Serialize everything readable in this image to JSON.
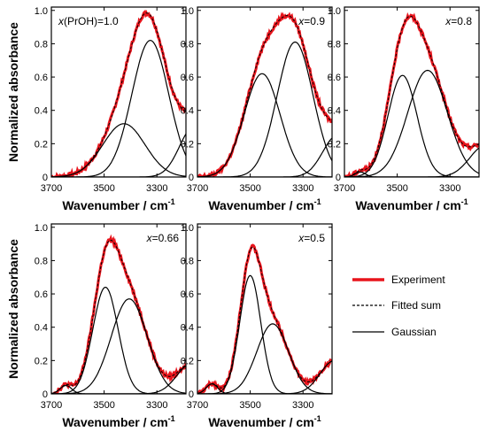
{
  "figure": {
    "legend": [
      {
        "label": "Experiment",
        "color": "#e8141c",
        "style": "thick"
      },
      {
        "label": "Fitted sum",
        "color": "#000000",
        "style": "dashed"
      },
      {
        "label": "Gaussian",
        "color": "#000000",
        "style": "solid"
      }
    ]
  },
  "chart_data": [
    {
      "type": "line",
      "annotation_prefix": "x",
      "annotation_sub": "(PrOH)",
      "annotation_value": "=1.0",
      "xlabel_main": "Wavenumber / cm",
      "xlabel_sup": "-1",
      "ylabel": "Normalized absorbance",
      "xlim": [
        3700,
        3190
      ],
      "ylim": [
        0,
        1.02
      ],
      "xticks": [
        3700,
        3500,
        3300
      ],
      "yticks": [
        0,
        0.2,
        0.4,
        0.6,
        0.8,
        1.0
      ],
      "gaussians": [
        {
          "center": 3325,
          "amp": 0.82,
          "sigma": 70
        },
        {
          "center": 3425,
          "amp": 0.32,
          "sigma": 80
        },
        {
          "center": 3160,
          "amp": 0.3,
          "sigma": 55
        }
      ]
    },
    {
      "type": "line",
      "annotation_prefix": "x",
      "annotation_sub": "",
      "annotation_value": "=0.9",
      "xlabel_main": "Wavenumber / cm",
      "xlabel_sup": "-1",
      "ylabel": "",
      "xlim": [
        3700,
        3190
      ],
      "ylim": [
        0,
        1.02
      ],
      "xticks": [
        3700,
        3500,
        3300
      ],
      "yticks": [
        0,
        0.2,
        0.4,
        0.6,
        0.8,
        1.0
      ],
      "gaussians": [
        {
          "center": 3330,
          "amp": 0.81,
          "sigma": 68
        },
        {
          "center": 3455,
          "amp": 0.62,
          "sigma": 68
        },
        {
          "center": 3170,
          "amp": 0.25,
          "sigma": 55
        }
      ]
    },
    {
      "type": "line",
      "annotation_prefix": "x",
      "annotation_sub": "",
      "annotation_value": "=0.8",
      "xlabel_main": "Wavenumber / cm",
      "xlabel_sup": "-1",
      "ylabel": "",
      "xlim": [
        3700,
        3190
      ],
      "ylim": [
        0,
        1.02
      ],
      "xticks": [
        3700,
        3500,
        3300
      ],
      "yticks": [
        0,
        0.2,
        0.4,
        0.6,
        0.8,
        1.0
      ],
      "gaussians": [
        {
          "center": 3480,
          "amp": 0.61,
          "sigma": 55
        },
        {
          "center": 3385,
          "amp": 0.64,
          "sigma": 75
        },
        {
          "center": 3165,
          "amp": 0.19,
          "sigma": 60
        },
        {
          "center": 3640,
          "amp": 0.03,
          "sigma": 20
        }
      ]
    },
    {
      "type": "line",
      "annotation_prefix": "x",
      "annotation_sub": "",
      "annotation_value": "=0.66",
      "xlabel_main": "Wavenumber / cm",
      "xlabel_sup": "-1",
      "ylabel": "Normalized absorbance",
      "xlim": [
        3700,
        3190
      ],
      "ylim": [
        0,
        1.02
      ],
      "xticks": [
        3700,
        3500,
        3300
      ],
      "yticks": [
        0,
        0.2,
        0.4,
        0.6,
        0.8,
        1.0
      ],
      "gaussians": [
        {
          "center": 3495,
          "amp": 0.64,
          "sigma": 48
        },
        {
          "center": 3405,
          "amp": 0.57,
          "sigma": 68
        },
        {
          "center": 3170,
          "amp": 0.18,
          "sigma": 55
        },
        {
          "center": 3645,
          "amp": 0.05,
          "sigma": 22
        }
      ]
    },
    {
      "type": "line",
      "annotation_prefix": "x",
      "annotation_sub": "",
      "annotation_value": "=0.5",
      "xlabel_main": "Wavenumber / cm",
      "xlabel_sup": "-1",
      "ylabel": "",
      "xlim": [
        3700,
        3190
      ],
      "ylim": [
        0,
        1.02
      ],
      "xticks": [
        3700,
        3500,
        3300
      ],
      "yticks": [
        0,
        0.2,
        0.4,
        0.6,
        0.8,
        1.0
      ],
      "gaussians": [
        {
          "center": 3500,
          "amp": 0.71,
          "sigma": 40
        },
        {
          "center": 3415,
          "amp": 0.42,
          "sigma": 60
        },
        {
          "center": 3180,
          "amp": 0.2,
          "sigma": 55
        },
        {
          "center": 3645,
          "amp": 0.06,
          "sigma": 22
        }
      ]
    }
  ]
}
